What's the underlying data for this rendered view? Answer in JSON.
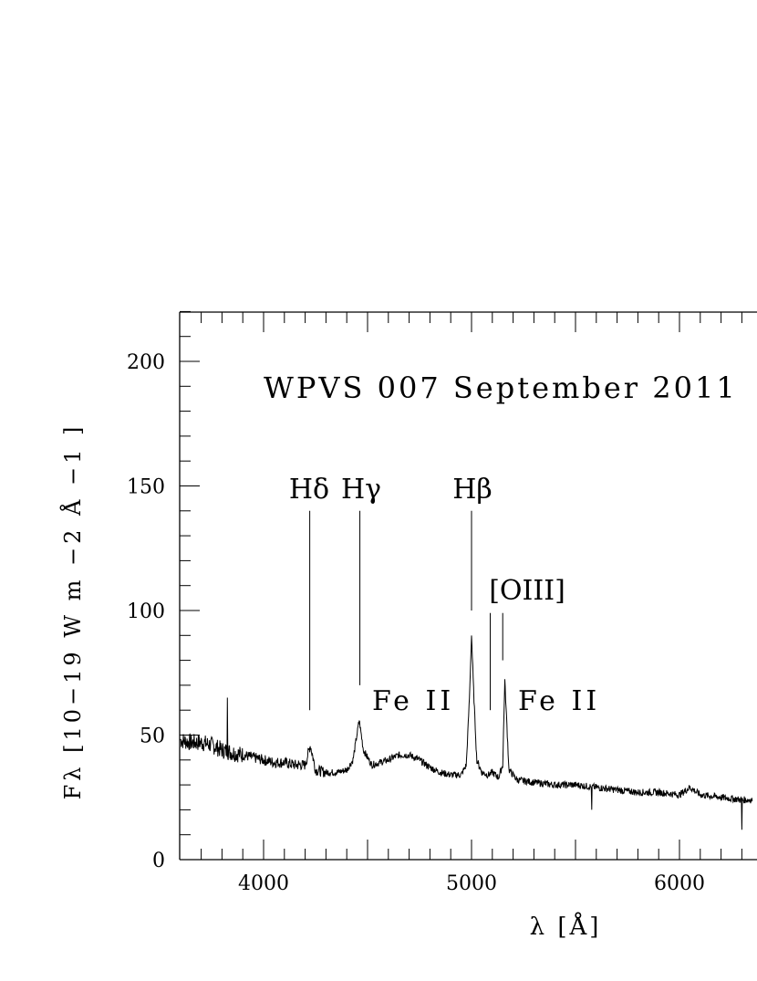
{
  "chart_data": {
    "type": "line",
    "title": "WPVS 007 September 2011",
    "xlabel": "λ [Å]",
    "ylabel": "Fλ [10−19 W m −2 Å −1 ]",
    "xlim": [
      3600,
      6350
    ],
    "ylim": [
      0,
      220
    ],
    "x_ticks": [
      4000,
      5000,
      6000
    ],
    "x_tick_labels": [
      "4000",
      "5000",
      "6000"
    ],
    "y_ticks": [
      0,
      50,
      100,
      150,
      200
    ],
    "y_tick_labels": [
      "0",
      "50",
      "100",
      "150",
      "200"
    ],
    "grid": false,
    "legend": "none",
    "series": [
      {
        "x": [
          3600,
          3650,
          3700,
          3750,
          3800,
          3850,
          3900,
          3950,
          4000,
          4050,
          4100,
          4150,
          4200,
          4225,
          4250,
          4300,
          4350,
          4400,
          4430,
          4460,
          4480,
          4520,
          4560,
          4600,
          4650,
          4700,
          4750,
          4800,
          4850,
          4900,
          4950,
          4975,
          4990,
          5000,
          5010,
          5025,
          5050,
          5080,
          5100,
          5130,
          5150,
          5160,
          5180,
          5220,
          5300,
          5400,
          5500,
          5600,
          5700,
          5800,
          5900,
          6000,
          6050,
          6100,
          6200,
          6300,
          6350
        ],
        "y": [
          48,
          47,
          47,
          46,
          44,
          43,
          42,
          41,
          40,
          39,
          39,
          38,
          38,
          46,
          36,
          35,
          35,
          36,
          40,
          56,
          44,
          38,
          39,
          40,
          42,
          42,
          40,
          37,
          35,
          34,
          34,
          38,
          65,
          90,
          68,
          40,
          35,
          34,
          35,
          33,
          38,
          72,
          36,
          32,
          31,
          30,
          30,
          29,
          28,
          27,
          27,
          26,
          29,
          26,
          25,
          24,
          24
        ]
      }
    ],
    "annotations": [
      {
        "text": "Hδ",
        "x": 4222
      },
      {
        "text": "Hγ",
        "x": 4463
      },
      {
        "text": "Hβ",
        "x": 5000
      },
      {
        "text": "[OIII]",
        "x": [
          5090,
          5150
        ]
      },
      {
        "text": "Fe  II",
        "x": 4680
      },
      {
        "text": "Fe  II",
        "x": 5370
      }
    ]
  }
}
